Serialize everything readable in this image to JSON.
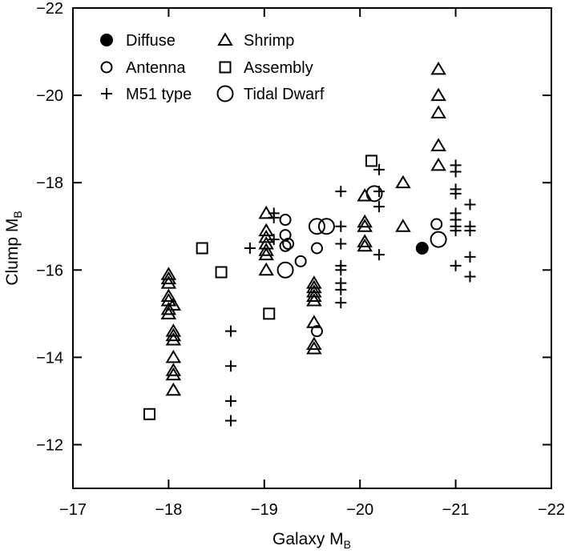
{
  "chart_data": {
    "type": "scatter",
    "xlabel": "Galaxy M",
    "xlabel_sub": "B",
    "ylabel": "Clump M",
    "ylabel_sub": "B",
    "xlim": [
      -17,
      -22
    ],
    "ylim": [
      -11,
      -22
    ],
    "x_ticks": [
      -17,
      -18,
      -19,
      -20,
      -21,
      -22
    ],
    "y_ticks": [
      -12,
      -14,
      -16,
      -18,
      -20,
      -22
    ],
    "x_tick_labels": [
      "−17",
      "−18",
      "−19",
      "−20",
      "−21",
      "−22"
    ],
    "y_tick_labels": [
      "−12",
      "−14",
      "−16",
      "−18",
      "−20",
      "−22"
    ],
    "grid": false,
    "legend_position": "top-left",
    "series": [
      {
        "name": "Diffuse",
        "marker": "filled-circle",
        "points": [
          [
            -20.65,
            -16.5
          ]
        ]
      },
      {
        "name": "Antenna",
        "marker": "open-circle",
        "points": [
          [
            -19.22,
            -17.15
          ],
          [
            -19.22,
            -16.8
          ],
          [
            -19.22,
            -16.55
          ],
          [
            -19.25,
            -16.6
          ],
          [
            -19.38,
            -16.2
          ],
          [
            -19.55,
            -16.5
          ],
          [
            -19.55,
            -14.6
          ],
          [
            -20.8,
            -17.05
          ]
        ]
      },
      {
        "name": "M51 type",
        "marker": "plus",
        "points": [
          [
            -18.65,
            -14.6
          ],
          [
            -18.65,
            -13.8
          ],
          [
            -18.65,
            -13.0
          ],
          [
            -18.65,
            -12.55
          ],
          [
            -18.85,
            -16.5
          ],
          [
            -19.1,
            -17.3
          ],
          [
            -19.1,
            -17.2
          ],
          [
            -19.1,
            -16.7
          ],
          [
            -19.8,
            -17.8
          ],
          [
            -19.8,
            -17.0
          ],
          [
            -19.8,
            -16.6
          ],
          [
            -19.8,
            -16.1
          ],
          [
            -19.8,
            -16.0
          ],
          [
            -19.8,
            -15.7
          ],
          [
            -19.8,
            -15.55
          ],
          [
            -19.8,
            -15.25
          ],
          [
            -20.2,
            -18.3
          ],
          [
            -20.2,
            -17.8
          ],
          [
            -20.2,
            -17.45
          ],
          [
            -20.2,
            -16.35
          ],
          [
            -21.0,
            -18.4
          ],
          [
            -21.0,
            -18.25
          ],
          [
            -21.0,
            -17.85
          ],
          [
            -21.0,
            -17.75
          ],
          [
            -21.0,
            -17.3
          ],
          [
            -21.0,
            -17.15
          ],
          [
            -21.0,
            -17.0
          ],
          [
            -21.0,
            -16.9
          ],
          [
            -21.0,
            -16.1
          ],
          [
            -21.15,
            -17.5
          ],
          [
            -21.15,
            -17.0
          ],
          [
            -21.15,
            -16.9
          ],
          [
            -21.15,
            -16.3
          ],
          [
            -21.15,
            -15.85
          ]
        ]
      },
      {
        "name": "Shrimp",
        "marker": "open-triangle",
        "points": [
          [
            -18.0,
            -15.9
          ],
          [
            -18.0,
            -15.8
          ],
          [
            -18.0,
            -15.7
          ],
          [
            -18.0,
            -15.4
          ],
          [
            -18.0,
            -15.3
          ],
          [
            -18.0,
            -15.1
          ],
          [
            -18.0,
            -15.0
          ],
          [
            -18.05,
            -15.2
          ],
          [
            -18.05,
            -14.6
          ],
          [
            -18.05,
            -14.5
          ],
          [
            -18.05,
            -14.4
          ],
          [
            -18.05,
            -14.0
          ],
          [
            -18.05,
            -13.7
          ],
          [
            -18.05,
            -13.6
          ],
          [
            -18.05,
            -13.25
          ],
          [
            -19.02,
            -17.3
          ],
          [
            -19.02,
            -16.9
          ],
          [
            -19.02,
            -16.75
          ],
          [
            -19.02,
            -16.6
          ],
          [
            -19.02,
            -16.45
          ],
          [
            -19.02,
            -16.35
          ],
          [
            -19.02,
            -16.0
          ],
          [
            -19.52,
            -15.7
          ],
          [
            -19.52,
            -15.6
          ],
          [
            -19.52,
            -15.5
          ],
          [
            -19.52,
            -15.4
          ],
          [
            -19.52,
            -15.3
          ],
          [
            -19.52,
            -14.8
          ],
          [
            -19.52,
            -14.3
          ],
          [
            -19.52,
            -14.2
          ],
          [
            -20.05,
            -17.7
          ],
          [
            -20.05,
            -17.1
          ],
          [
            -20.05,
            -17.0
          ],
          [
            -20.05,
            -16.65
          ],
          [
            -20.05,
            -16.55
          ],
          [
            -20.45,
            -18.0
          ],
          [
            -20.45,
            -17.0
          ],
          [
            -20.82,
            -20.6
          ],
          [
            -20.82,
            -20.0
          ],
          [
            -20.82,
            -19.6
          ],
          [
            -20.82,
            -18.85
          ],
          [
            -20.82,
            -18.4
          ]
        ]
      },
      {
        "name": "Assembly",
        "marker": "open-square",
        "points": [
          [
            -17.8,
            -12.7
          ],
          [
            -18.35,
            -16.5
          ],
          [
            -18.55,
            -15.95
          ],
          [
            -19.05,
            -15.0
          ],
          [
            -20.12,
            -18.5
          ]
        ]
      },
      {
        "name": "Tidal Dwarf",
        "marker": "large-open-circle",
        "points": [
          [
            -19.22,
            -16.0
          ],
          [
            -19.55,
            -17.0
          ],
          [
            -19.65,
            -17.0
          ],
          [
            -20.15,
            -17.75
          ],
          [
            -20.82,
            -16.7
          ]
        ]
      }
    ]
  }
}
